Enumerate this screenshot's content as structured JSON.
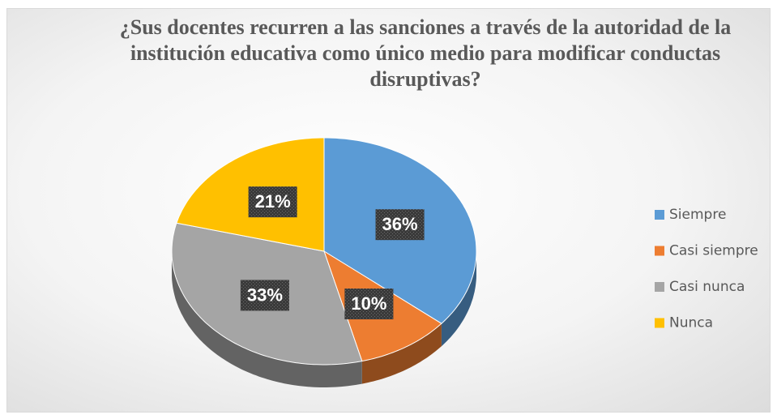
{
  "chart_data": {
    "type": "pie",
    "title": "¿Sus docentes recurren a las sanciones a través de la autoridad de la institución educativa como único medio para modificar conductas disruptivas?",
    "categories": [
      "Siempre",
      "Casi siempre",
      "Casi nunca",
      "Nunca"
    ],
    "values": [
      36,
      10,
      33,
      21
    ],
    "value_labels": [
      "36%",
      "10%",
      "33%",
      "21%"
    ],
    "colors": [
      "#5b9bd5",
      "#ed7d31",
      "#a5a5a5",
      "#ffc000"
    ],
    "legend": "right"
  }
}
